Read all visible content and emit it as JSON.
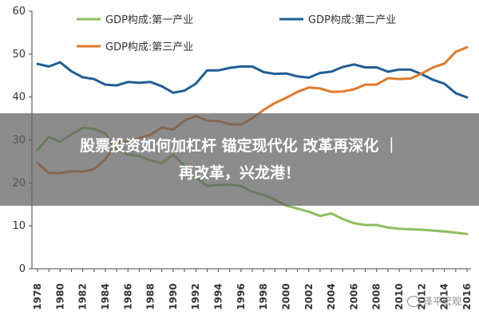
{
  "chart_data": {
    "type": "line",
    "x": [
      1978,
      1979,
      1980,
      1981,
      1982,
      1983,
      1984,
      1985,
      1986,
      1987,
      1988,
      1989,
      1990,
      1991,
      1992,
      1993,
      1994,
      1995,
      1996,
      1997,
      1998,
      1999,
      2000,
      2001,
      2002,
      2003,
      2004,
      2005,
      2006,
      2007,
      2008,
      2009,
      2010,
      2011,
      2012,
      2013,
      2014,
      2015,
      2016
    ],
    "xticks": [
      "1978",
      "1980",
      "1982",
      "1984",
      "1986",
      "1988",
      "1990",
      "1992",
      "1994",
      "1996",
      "1998",
      "2000",
      "2002",
      "2004",
      "2006",
      "2008",
      "2010",
      "2012",
      "2014",
      "2016"
    ],
    "yticks": [
      "0",
      "10",
      "20",
      "30",
      "40",
      "50",
      "60"
    ],
    "ylim": [
      0,
      60
    ],
    "series": [
      {
        "name": "GDP构成:第一产业",
        "color": "#8DBE5C",
        "values": [
          27.7,
          30.7,
          29.6,
          31.3,
          32.8,
          32.6,
          31.5,
          27.9,
          26.6,
          26.3,
          25.2,
          24.6,
          26.6,
          24.0,
          21.3,
          19.3,
          19.5,
          19.6,
          19.3,
          17.9,
          17.2,
          16.1,
          14.7,
          14.0,
          13.3,
          12.3,
          12.9,
          11.6,
          10.6,
          10.2,
          10.2,
          9.6,
          9.3,
          9.2,
          9.1,
          8.9,
          8.7,
          8.4,
          8.1
        ]
      },
      {
        "name": "GDP构成:第二产业",
        "color": "#1F5E94",
        "values": [
          47.7,
          47.1,
          48.1,
          46.0,
          44.6,
          44.2,
          42.9,
          42.7,
          43.5,
          43.3,
          43.5,
          42.5,
          41.0,
          41.5,
          43.1,
          46.2,
          46.2,
          46.8,
          47.1,
          47.1,
          45.8,
          45.4,
          45.5,
          44.8,
          44.5,
          45.6,
          45.9,
          47.0,
          47.6,
          46.9,
          46.9,
          45.9,
          46.4,
          46.4,
          45.3,
          44.0,
          43.1,
          40.9,
          39.9
        ]
      },
      {
        "name": "GDP构成:第三产业",
        "color": "#E07A2B",
        "values": [
          24.6,
          22.3,
          22.3,
          22.7,
          22.6,
          23.2,
          25.5,
          29.4,
          29.8,
          30.4,
          31.2,
          32.9,
          32.4,
          34.5,
          35.6,
          34.5,
          34.4,
          33.7,
          33.6,
          35.0,
          37.0,
          38.6,
          39.8,
          41.2,
          42.2,
          42.0,
          41.2,
          41.3,
          41.8,
          42.9,
          42.9,
          44.4,
          44.2,
          44.3,
          45.5,
          46.9,
          47.8,
          50.5,
          51.6
        ]
      }
    ]
  },
  "overlay": {
    "line1": "股票投资如何加杠杆 锚定现代化  改革再深化 ｜",
    "line2": "再改革，兴龙港！"
  },
  "watermark": {
    "icon": "wechat-icon",
    "text": "泽平宏观"
  }
}
